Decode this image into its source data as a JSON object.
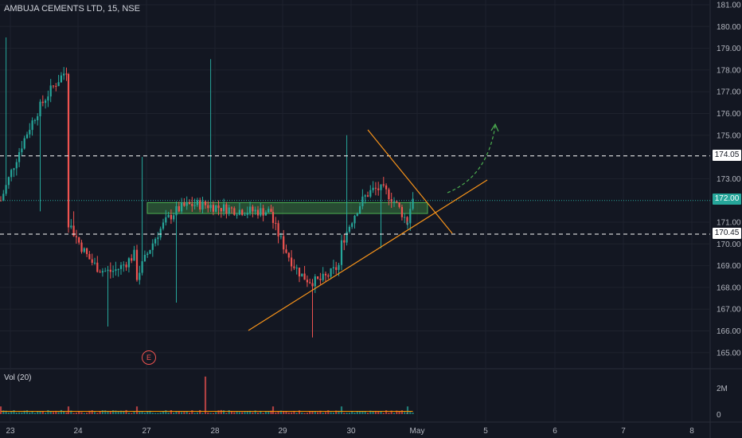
{
  "header": {
    "title": "AMBUJA CEMENTS LTD, 15, NSE"
  },
  "volume_panel": {
    "label": "Vol (20)",
    "axis_labels": [
      "2M",
      "0"
    ]
  },
  "price_axis": {
    "ticks": [
      "181.00",
      "180.00",
      "179.00",
      "178.00",
      "177.00",
      "176.00",
      "175.00",
      "173.00",
      "171.00",
      "170.00",
      "169.00",
      "168.00",
      "167.00",
      "166.00",
      "165.00"
    ],
    "tags": {
      "resistance": "174.05",
      "current": "172.00",
      "support": "170.45"
    }
  },
  "time_axis": {
    "labels": [
      "23",
      "24",
      "27",
      "28",
      "29",
      "30",
      "May",
      "5",
      "6",
      "7",
      "8"
    ]
  },
  "events": {
    "earnings_badge": "E"
  },
  "colors": {
    "background": "#131722",
    "up": "#26a69a",
    "down": "#ef5350",
    "trendline": "#f7931a",
    "zone": "#4caf50",
    "volume_ma": "#ff9800"
  },
  "chart_data": {
    "type": "candlestick",
    "title": "AMBUJA CEMENTS LTD, 15, NSE",
    "interval": "15",
    "exchange": "NSE",
    "ylim": [
      164.7,
      181.2
    ],
    "x_labels": [
      "23",
      "24",
      "27",
      "28",
      "29",
      "30",
      "May",
      "5",
      "6",
      "7",
      "8"
    ],
    "horizontal_levels": [
      174.05,
      170.45
    ],
    "last_price": 172.0,
    "demand_zone": [
      171.4,
      171.9
    ],
    "anchor_closes": [
      {
        "session": "23",
        "open": 172.0,
        "high": 179.5,
        "low": 171.5,
        "close": 178.0
      },
      {
        "session": "24",
        "open": 171.0,
        "high": 171.5,
        "low": 166.2,
        "close": 169.5
      },
      {
        "session": "27",
        "open": 168.5,
        "high": 174.0,
        "low": 167.3,
        "close": 171.8
      },
      {
        "session": "28",
        "open": 171.8,
        "high": 178.5,
        "low": 171.5,
        "close": 171.5
      },
      {
        "session": "29",
        "open": 171.0,
        "high": 171.0,
        "low": 165.7,
        "close": 169.0
      },
      {
        "session": "30",
        "open": 170.0,
        "high": 175.0,
        "low": 169.8,
        "close": 171.0
      },
      {
        "session": "May",
        "open": 171.0,
        "high": 172.5,
        "low": 170.6,
        "close": 172.0
      }
    ],
    "volume_ylim": [
      0,
      2.8
    ],
    "volume_unit": "M",
    "volume_peak": 2.2,
    "volume_typical": 0.15,
    "grid": true
  }
}
